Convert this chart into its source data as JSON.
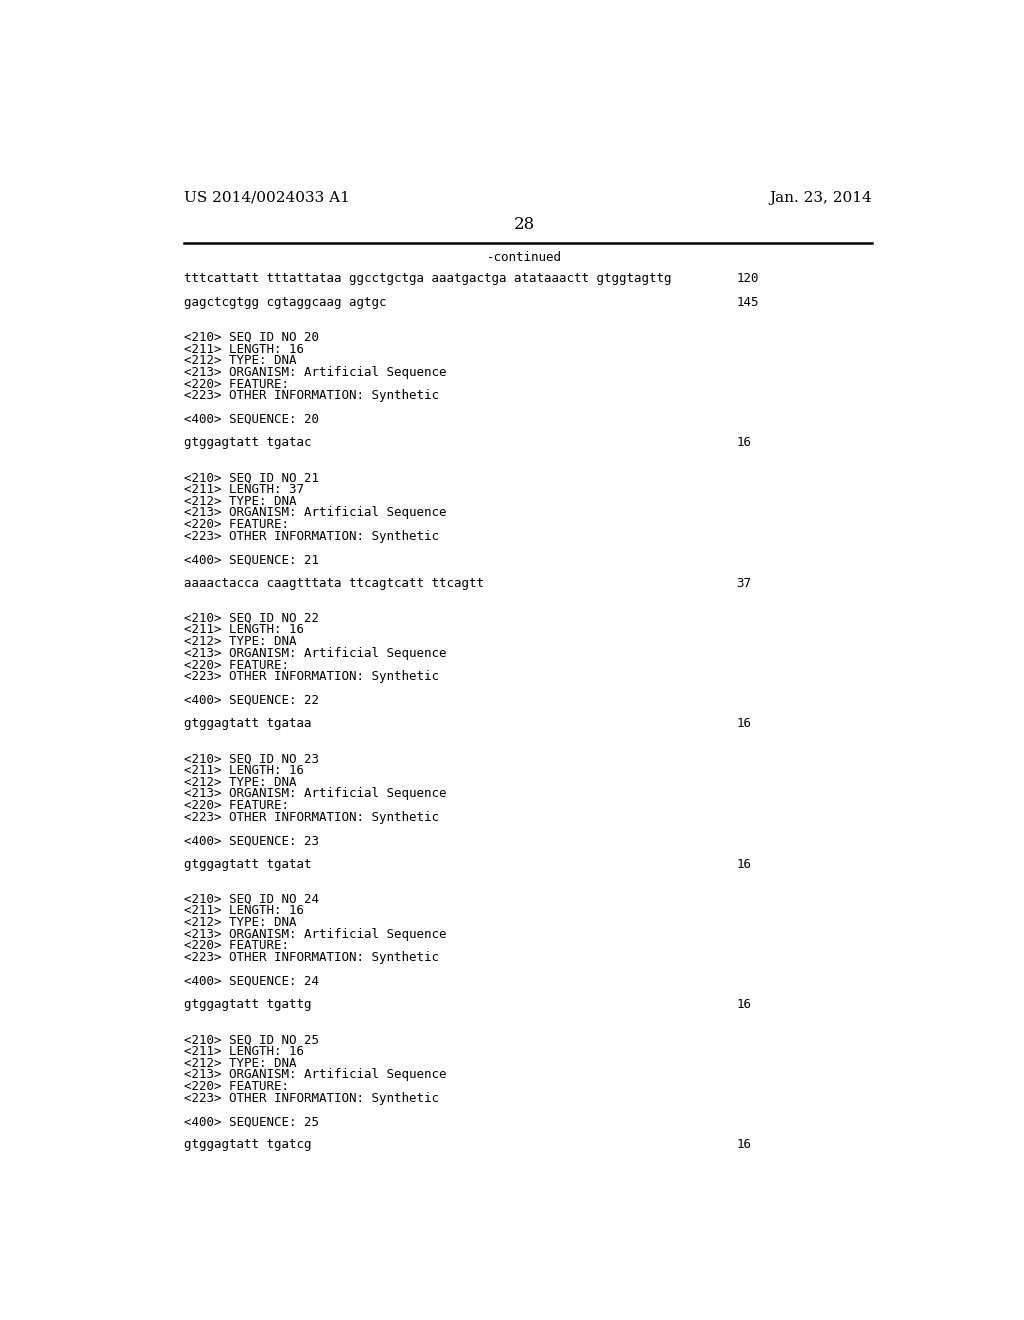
{
  "header_left": "US 2014/0024033 A1",
  "header_right": "Jan. 23, 2014",
  "page_number": "28",
  "continued_label": "-continued",
  "background_color": "#ffffff",
  "text_color": "#000000",
  "font_size_header": 11,
  "font_size_body": 9,
  "lines": [
    {
      "text": "tttcattatt tttattataa ggcctgctga aaatgactga atataaactt gtggtagttg",
      "number": "120",
      "type": "sequence"
    },
    {
      "text": "",
      "number": "",
      "type": "blank"
    },
    {
      "text": "gagctcgtgg cgtaggcaag agtgc",
      "number": "145",
      "type": "sequence"
    },
    {
      "text": "",
      "number": "",
      "type": "blank"
    },
    {
      "text": "",
      "number": "",
      "type": "blank"
    },
    {
      "text": "<210> SEQ ID NO 20",
      "number": "",
      "type": "meta"
    },
    {
      "text": "<211> LENGTH: 16",
      "number": "",
      "type": "meta"
    },
    {
      "text": "<212> TYPE: DNA",
      "number": "",
      "type": "meta"
    },
    {
      "text": "<213> ORGANISM: Artificial Sequence",
      "number": "",
      "type": "meta"
    },
    {
      "text": "<220> FEATURE:",
      "number": "",
      "type": "meta"
    },
    {
      "text": "<223> OTHER INFORMATION: Synthetic",
      "number": "",
      "type": "meta"
    },
    {
      "text": "",
      "number": "",
      "type": "blank"
    },
    {
      "text": "<400> SEQUENCE: 20",
      "number": "",
      "type": "meta"
    },
    {
      "text": "",
      "number": "",
      "type": "blank"
    },
    {
      "text": "gtggagtatt tgatac",
      "number": "16",
      "type": "sequence"
    },
    {
      "text": "",
      "number": "",
      "type": "blank"
    },
    {
      "text": "",
      "number": "",
      "type": "blank"
    },
    {
      "text": "<210> SEQ ID NO 21",
      "number": "",
      "type": "meta"
    },
    {
      "text": "<211> LENGTH: 37",
      "number": "",
      "type": "meta"
    },
    {
      "text": "<212> TYPE: DNA",
      "number": "",
      "type": "meta"
    },
    {
      "text": "<213> ORGANISM: Artificial Sequence",
      "number": "",
      "type": "meta"
    },
    {
      "text": "<220> FEATURE:",
      "number": "",
      "type": "meta"
    },
    {
      "text": "<223> OTHER INFORMATION: Synthetic",
      "number": "",
      "type": "meta"
    },
    {
      "text": "",
      "number": "",
      "type": "blank"
    },
    {
      "text": "<400> SEQUENCE: 21",
      "number": "",
      "type": "meta"
    },
    {
      "text": "",
      "number": "",
      "type": "blank"
    },
    {
      "text": "aaaactacca caagtttata ttcagtcatt ttcagtt",
      "number": "37",
      "type": "sequence"
    },
    {
      "text": "",
      "number": "",
      "type": "blank"
    },
    {
      "text": "",
      "number": "",
      "type": "blank"
    },
    {
      "text": "<210> SEQ ID NO 22",
      "number": "",
      "type": "meta"
    },
    {
      "text": "<211> LENGTH: 16",
      "number": "",
      "type": "meta"
    },
    {
      "text": "<212> TYPE: DNA",
      "number": "",
      "type": "meta"
    },
    {
      "text": "<213> ORGANISM: Artificial Sequence",
      "number": "",
      "type": "meta"
    },
    {
      "text": "<220> FEATURE:",
      "number": "",
      "type": "meta"
    },
    {
      "text": "<223> OTHER INFORMATION: Synthetic",
      "number": "",
      "type": "meta"
    },
    {
      "text": "",
      "number": "",
      "type": "blank"
    },
    {
      "text": "<400> SEQUENCE: 22",
      "number": "",
      "type": "meta"
    },
    {
      "text": "",
      "number": "",
      "type": "blank"
    },
    {
      "text": "gtggagtatt tgataa",
      "number": "16",
      "type": "sequence"
    },
    {
      "text": "",
      "number": "",
      "type": "blank"
    },
    {
      "text": "",
      "number": "",
      "type": "blank"
    },
    {
      "text": "<210> SEQ ID NO 23",
      "number": "",
      "type": "meta"
    },
    {
      "text": "<211> LENGTH: 16",
      "number": "",
      "type": "meta"
    },
    {
      "text": "<212> TYPE: DNA",
      "number": "",
      "type": "meta"
    },
    {
      "text": "<213> ORGANISM: Artificial Sequence",
      "number": "",
      "type": "meta"
    },
    {
      "text": "<220> FEATURE:",
      "number": "",
      "type": "meta"
    },
    {
      "text": "<223> OTHER INFORMATION: Synthetic",
      "number": "",
      "type": "meta"
    },
    {
      "text": "",
      "number": "",
      "type": "blank"
    },
    {
      "text": "<400> SEQUENCE: 23",
      "number": "",
      "type": "meta"
    },
    {
      "text": "",
      "number": "",
      "type": "blank"
    },
    {
      "text": "gtggagtatt tgatat",
      "number": "16",
      "type": "sequence"
    },
    {
      "text": "",
      "number": "",
      "type": "blank"
    },
    {
      "text": "",
      "number": "",
      "type": "blank"
    },
    {
      "text": "<210> SEQ ID NO 24",
      "number": "",
      "type": "meta"
    },
    {
      "text": "<211> LENGTH: 16",
      "number": "",
      "type": "meta"
    },
    {
      "text": "<212> TYPE: DNA",
      "number": "",
      "type": "meta"
    },
    {
      "text": "<213> ORGANISM: Artificial Sequence",
      "number": "",
      "type": "meta"
    },
    {
      "text": "<220> FEATURE:",
      "number": "",
      "type": "meta"
    },
    {
      "text": "<223> OTHER INFORMATION: Synthetic",
      "number": "",
      "type": "meta"
    },
    {
      "text": "",
      "number": "",
      "type": "blank"
    },
    {
      "text": "<400> SEQUENCE: 24",
      "number": "",
      "type": "meta"
    },
    {
      "text": "",
      "number": "",
      "type": "blank"
    },
    {
      "text": "gtggagtatt tgattg",
      "number": "16",
      "type": "sequence"
    },
    {
      "text": "",
      "number": "",
      "type": "blank"
    },
    {
      "text": "",
      "number": "",
      "type": "blank"
    },
    {
      "text": "<210> SEQ ID NO 25",
      "number": "",
      "type": "meta"
    },
    {
      "text": "<211> LENGTH: 16",
      "number": "",
      "type": "meta"
    },
    {
      "text": "<212> TYPE: DNA",
      "number": "",
      "type": "meta"
    },
    {
      "text": "<213> ORGANISM: Artificial Sequence",
      "number": "",
      "type": "meta"
    },
    {
      "text": "<220> FEATURE:",
      "number": "",
      "type": "meta"
    },
    {
      "text": "<223> OTHER INFORMATION: Synthetic",
      "number": "",
      "type": "meta"
    },
    {
      "text": "",
      "number": "",
      "type": "blank"
    },
    {
      "text": "<400> SEQUENCE: 25",
      "number": "",
      "type": "meta"
    },
    {
      "text": "",
      "number": "",
      "type": "blank"
    },
    {
      "text": "gtggagtatt tgatcg",
      "number": "16",
      "type": "sequence"
    }
  ]
}
